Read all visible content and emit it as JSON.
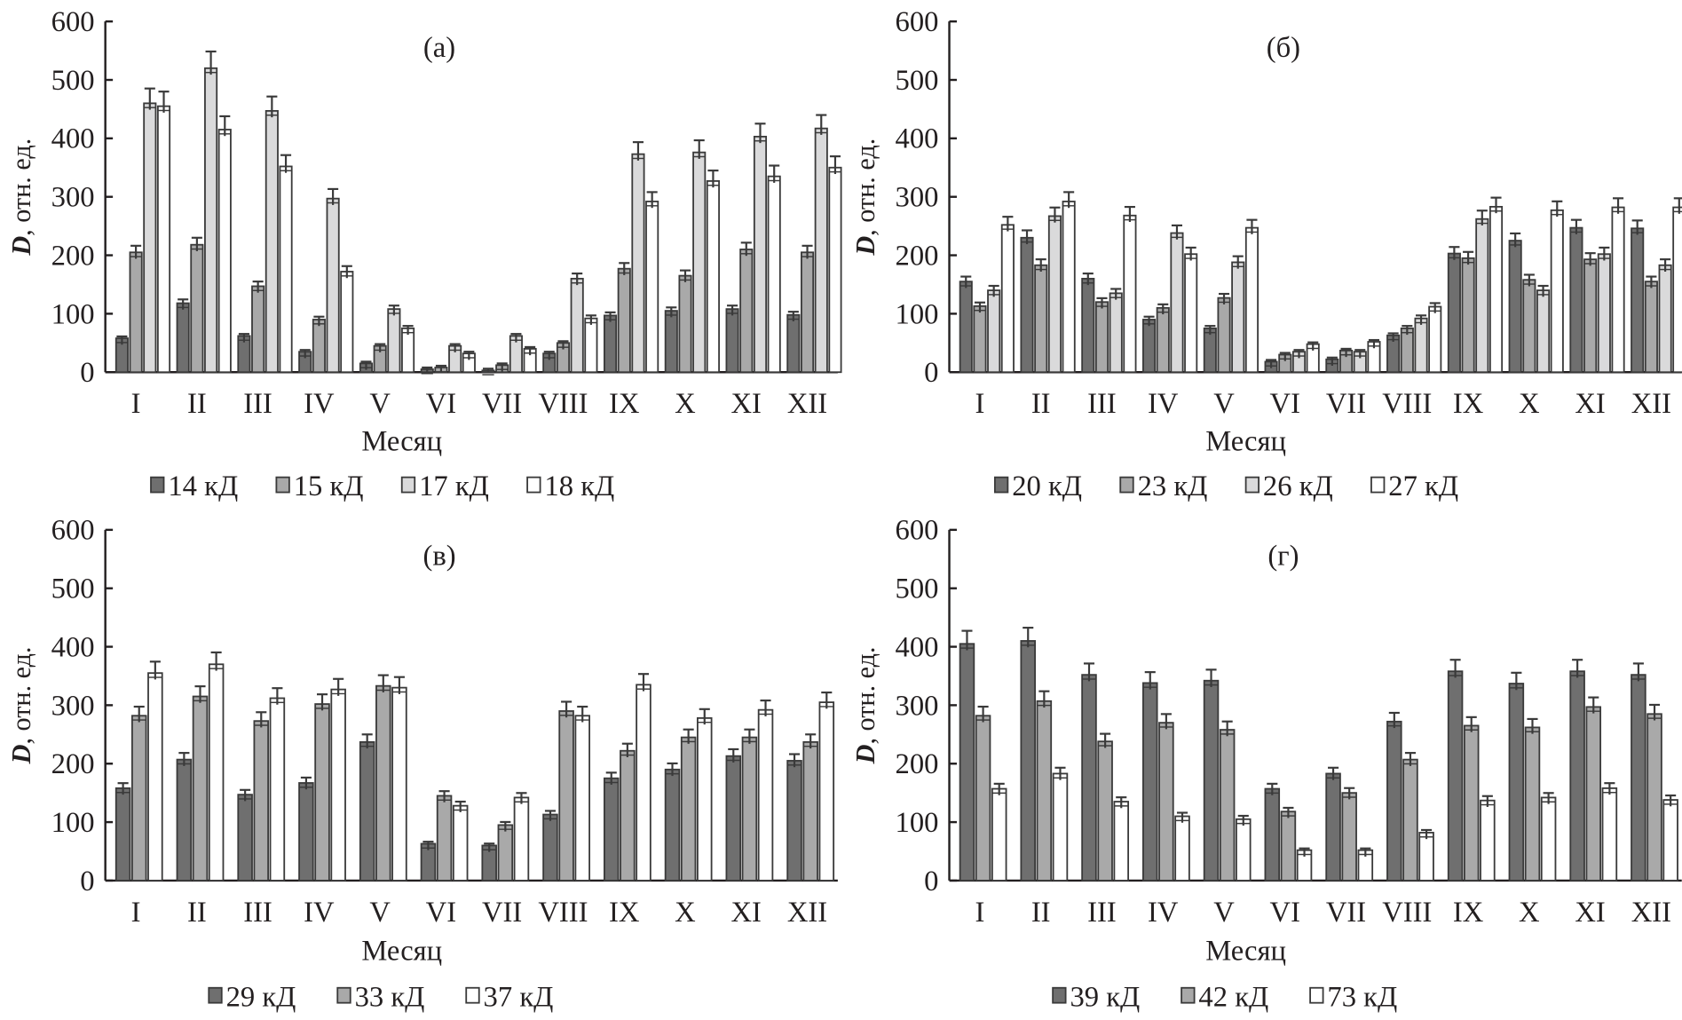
{
  "chart_data": [
    {
      "type": "bar",
      "title": "(а)",
      "xlabel": "Месяц",
      "ylabel_var": "D",
      "ylabel_rest": ", отн. ед.",
      "ylim": [
        0,
        600
      ],
      "yticks": [
        "0",
        "100",
        "200",
        "300",
        "400",
        "500",
        "600"
      ],
      "categories": [
        "I",
        "II",
        "III",
        "IV",
        "V",
        "VI",
        "VII",
        "VIII",
        "IX",
        "X",
        "XI",
        "XII"
      ],
      "legend_position": "bottom",
      "series": [
        {
          "name": "14 кД",
          "color": "#6f6f6f",
          "values": [
            58,
            118,
            62,
            35,
            15,
            5,
            3,
            32,
            97,
            105,
            108,
            98
          ]
        },
        {
          "name": "15 кД",
          "color": "#a9a9a9",
          "values": [
            205,
            218,
            147,
            90,
            45,
            8,
            12,
            50,
            177,
            165,
            210,
            205
          ]
        },
        {
          "name": "17 кД",
          "color": "#dadadb",
          "values": [
            460,
            520,
            447,
            297,
            108,
            45,
            62,
            160,
            373,
            376,
            403,
            417
          ]
        },
        {
          "name": "18 кД",
          "color": "#ffffff",
          "values": [
            455,
            415,
            352,
            172,
            75,
            32,
            40,
            92,
            292,
            327,
            335,
            350
          ]
        }
      ]
    },
    {
      "type": "bar",
      "title": "(б)",
      "xlabel": "Месяц",
      "ylabel_var": "D",
      "ylabel_rest": ", отн. ед.",
      "ylim": [
        0,
        600
      ],
      "yticks": [
        "0",
        "100",
        "200",
        "300",
        "400",
        "500",
        "600"
      ],
      "categories": [
        "I",
        "II",
        "III",
        "IV",
        "V",
        "VI",
        "VII",
        "VIII",
        "IX",
        "X",
        "XI",
        "XII"
      ],
      "legend_position": "bottom",
      "series": [
        {
          "name": "20 кД",
          "color": "#6f6f6f",
          "values": [
            155,
            230,
            160,
            90,
            75,
            18,
            22,
            63,
            203,
            225,
            247,
            246
          ]
        },
        {
          "name": "23 кД",
          "color": "#a9a9a9",
          "values": [
            113,
            183,
            120,
            110,
            127,
            30,
            37,
            75,
            195,
            158,
            193,
            155
          ]
        },
        {
          "name": "26 кД",
          "color": "#dadadb",
          "values": [
            140,
            267,
            135,
            238,
            188,
            35,
            35,
            92,
            262,
            140,
            202,
            183
          ]
        },
        {
          "name": "27 кД",
          "color": "#ffffff",
          "values": [
            252,
            292,
            268,
            202,
            247,
            48,
            52,
            112,
            283,
            277,
            282,
            282
          ]
        }
      ]
    },
    {
      "type": "bar",
      "title": "(в)",
      "xlabel": "Месяц",
      "ylabel_var": "D",
      "ylabel_rest": ", отн. ед.",
      "ylim": [
        0,
        600
      ],
      "yticks": [
        "0",
        "100",
        "200",
        "300",
        "400",
        "500",
        "600"
      ],
      "categories": [
        "I",
        "II",
        "III",
        "IV",
        "V",
        "VI",
        "VII",
        "VIII",
        "IX",
        "X",
        "XI",
        "XII"
      ],
      "legend_position": "bottom",
      "series": [
        {
          "name": "29 кД",
          "color": "#6f6f6f",
          "values": [
            158,
            207,
            147,
            167,
            237,
            63,
            60,
            113,
            175,
            190,
            213,
            205
          ]
        },
        {
          "name": "33 кД",
          "color": "#a9a9a9",
          "values": [
            282,
            315,
            273,
            302,
            333,
            145,
            95,
            290,
            222,
            245,
            245,
            237
          ]
        },
        {
          "name": "37 кД",
          "color": "#ffffff",
          "values": [
            355,
            370,
            312,
            327,
            330,
            128,
            142,
            282,
            335,
            278,
            292,
            305
          ]
        }
      ]
    },
    {
      "type": "bar",
      "title": "(г)",
      "xlabel": "Месяц",
      "ylabel_var": "D",
      "ylabel_rest": ", отн. ед.",
      "ylim": [
        0,
        600
      ],
      "yticks": [
        "0",
        "100",
        "200",
        "300",
        "400",
        "500",
        "600"
      ],
      "categories": [
        "I",
        "II",
        "III",
        "IV",
        "V",
        "VI",
        "VII",
        "VIII",
        "IX",
        "X",
        "XI",
        "XII"
      ],
      "legend_position": "bottom",
      "series": [
        {
          "name": "39 кД",
          "color": "#6f6f6f",
          "values": [
            405,
            410,
            352,
            338,
            342,
            157,
            183,
            272,
            358,
            337,
            358,
            352
          ]
        },
        {
          "name": "42 кД",
          "color": "#a9a9a9",
          "values": [
            282,
            307,
            238,
            270,
            258,
            118,
            150,
            207,
            265,
            262,
            297,
            285
          ]
        },
        {
          "name": "73 кД",
          "color": "#ffffff",
          "values": [
            157,
            183,
            135,
            110,
            105,
            52,
            52,
            82,
            137,
            142,
            158,
            138
          ]
        }
      ]
    }
  ]
}
